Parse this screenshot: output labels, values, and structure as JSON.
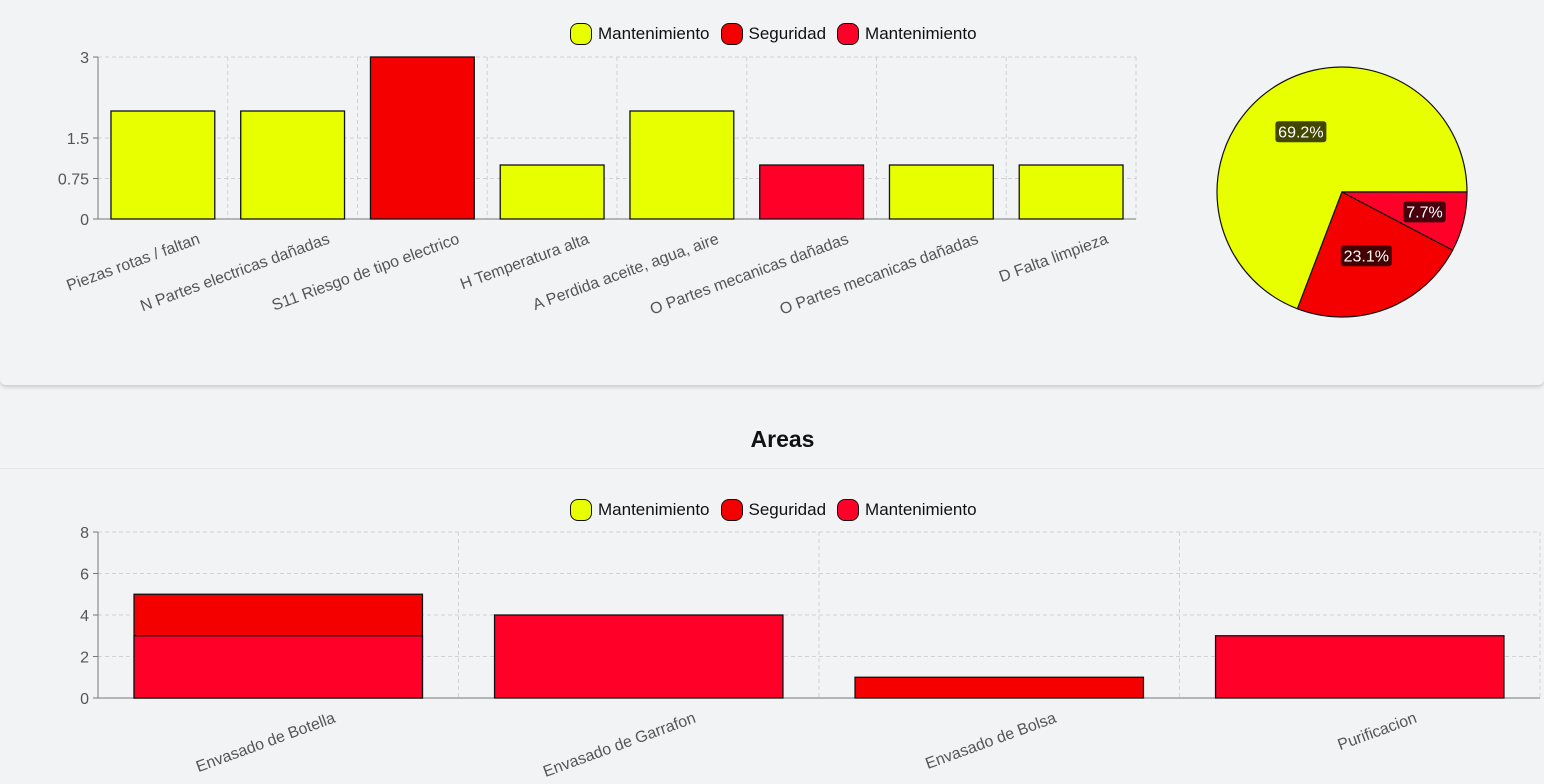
{
  "legend": [
    {
      "label": "Mantenimiento",
      "color": "#e8ff00"
    },
    {
      "label": "Seguridad",
      "color": "#f50000"
    },
    {
      "label": "Mantenimiento",
      "color": "#ff0028"
    }
  ],
  "section2": {
    "title": "Areas"
  },
  "chart_data": [
    {
      "type": "bar",
      "categories": [
        "Piezas rotas / faltan",
        "N Partes electricas dañadas",
        "S11 Riesgo de tipo electrico",
        "H Temperatura alta",
        "A Perdida aceite, agua, aire",
        "O Partes mecanicas dañadas",
        "O Partes mecanicas dañadas",
        "D Falta limpieza"
      ],
      "values": [
        2,
        2,
        3,
        1,
        2,
        1,
        1,
        1
      ],
      "bar_colors": [
        "#e8ff00",
        "#e8ff00",
        "#f50000",
        "#e8ff00",
        "#e8ff00",
        "#ff0028",
        "#e8ff00",
        "#e8ff00"
      ],
      "yticks": [
        "0",
        "0.75",
        "1.5",
        "3"
      ],
      "ylim": [
        0,
        3
      ],
      "grid": true,
      "legend_position": "top"
    },
    {
      "type": "pie",
      "slices": [
        {
          "value": 69.2,
          "label": "69.2%",
          "color": "#e8ff00"
        },
        {
          "value": 23.1,
          "label": "23.1%",
          "color": "#f50000"
        },
        {
          "value": 7.7,
          "label": "7.7%",
          "color": "#ff0028"
        }
      ]
    },
    {
      "type": "bar",
      "categories": [
        "Envasado de Botella",
        "Envasado de Garrafon",
        "Envasado de Bolsa",
        "Purificacion"
      ],
      "series": [
        {
          "values": [
            5,
            0,
            1,
            0
          ],
          "color": "#f50000"
        },
        {
          "values": [
            3,
            4,
            0,
            3
          ],
          "color": "#ff0028"
        }
      ],
      "yticks": [
        "0",
        "2",
        "4",
        "6",
        "8"
      ],
      "ylim": [
        0,
        8
      ],
      "grid": true,
      "legend_position": "top"
    }
  ]
}
